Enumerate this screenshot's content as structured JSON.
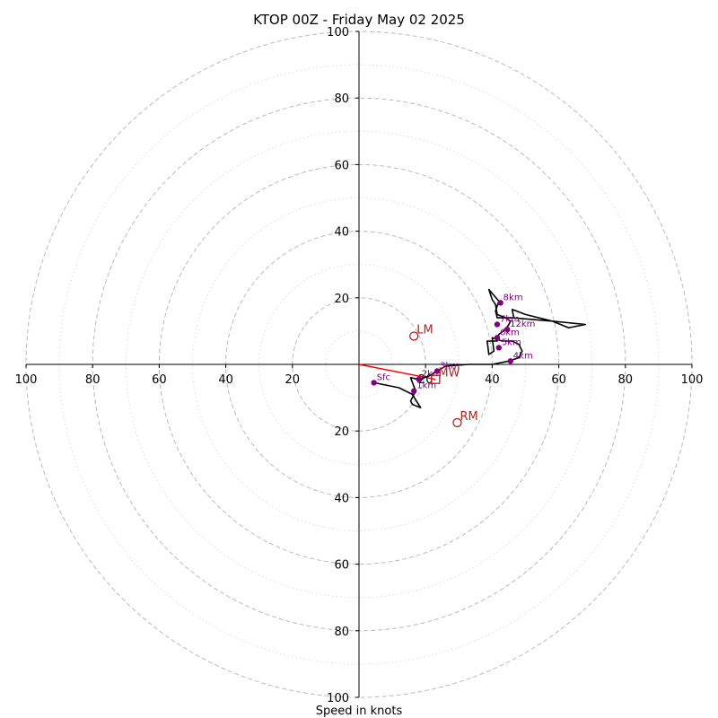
{
  "chart_data": {
    "type": "hodograph",
    "title": "KTOP 00Z - Friday May 02 2025",
    "xlabel": "Speed in knots",
    "units": "knots",
    "range": [
      -100,
      100
    ],
    "major_rings": [
      20,
      40,
      60,
      80,
      100
    ],
    "minor_rings": [
      10,
      30,
      50,
      70,
      90
    ],
    "grid": true,
    "x_tick_labels": [
      "100",
      "80",
      "60",
      "40",
      "20",
      "20",
      "40",
      "60",
      "80",
      "100"
    ],
    "y_tick_labels": [
      "100",
      "80",
      "60",
      "40",
      "20",
      "20",
      "40",
      "60",
      "80",
      "100"
    ],
    "trace": [
      [
        4.5,
        -5.5
      ],
      [
        12,
        -7
      ],
      [
        16,
        -9
      ],
      [
        18.5,
        -13
      ],
      [
        16,
        -12
      ],
      [
        15.5,
        -11
      ],
      [
        17,
        -8
      ],
      [
        15.5,
        -4
      ],
      [
        18,
        -4.5
      ],
      [
        21,
        -3.5
      ],
      [
        23.5,
        -2
      ],
      [
        26,
        -0.5
      ],
      [
        33,
        0
      ],
      [
        38,
        0
      ],
      [
        40,
        0
      ],
      [
        45,
        1
      ],
      [
        48,
        2
      ],
      [
        49,
        4
      ],
      [
        48,
        6
      ],
      [
        46,
        7
      ],
      [
        43,
        7
      ],
      [
        40,
        8
      ],
      [
        40.5,
        4
      ],
      [
        39,
        3
      ],
      [
        38.5,
        7
      ],
      [
        41.5,
        7
      ],
      [
        42,
        9
      ],
      [
        44,
        10.5
      ],
      [
        45,
        12
      ],
      [
        45.5,
        13
      ],
      [
        44,
        14
      ],
      [
        41.5,
        15
      ],
      [
        41,
        18
      ],
      [
        40,
        19.5
      ],
      [
        39,
        22.5
      ],
      [
        42,
        19
      ],
      [
        41,
        16
      ],
      [
        41.5,
        14
      ],
      [
        46,
        14
      ],
      [
        58,
        13
      ],
      [
        68,
        12
      ],
      [
        63,
        11
      ],
      [
        58,
        13
      ],
      [
        50,
        15
      ],
      [
        46,
        16.5
      ],
      [
        46.5,
        14
      ]
    ],
    "height_markers": [
      {
        "label": "Sfc",
        "u": 4.5,
        "v": -5.5
      },
      {
        "label": "1km",
        "u": 16.5,
        "v": -8
      },
      {
        "label": "2km",
        "u": 18,
        "v": -4.5
      },
      {
        "label": "3km",
        "u": 23.5,
        "v": -2
      },
      {
        "label": "4km",
        "u": 45.5,
        "v": 1
      },
      {
        "label": "5km",
        "u": 42,
        "v": 5
      },
      {
        "label": "6km",
        "u": 41.5,
        "v": 8
      },
      {
        "label": "7km",
        "u": 41.5,
        "v": 12
      },
      {
        "label": "8km",
        "u": 42.5,
        "v": 18.5
      },
      {
        "label": "12km",
        "u": 44.5,
        "v": 10.5
      }
    ],
    "motion_markers": [
      {
        "label": "LM",
        "u": 16.5,
        "v": 8.5,
        "shape": "circle"
      },
      {
        "label": "RM",
        "u": 29.5,
        "v": -17.5,
        "shape": "circle"
      },
      {
        "label": "MW",
        "u": 23,
        "v": -4.5,
        "shape": "square"
      }
    ],
    "shear_line": [
      [
        0,
        0
      ],
      [
        23,
        -4.5
      ]
    ],
    "colors": {
      "trace": "#000000",
      "height_marker": "#800080",
      "motion": "#b22222",
      "shear_line": "#ff0000",
      "major_grid": "#bbbbbb",
      "minor_grid": "#dddddd",
      "axes": "#000000"
    }
  }
}
